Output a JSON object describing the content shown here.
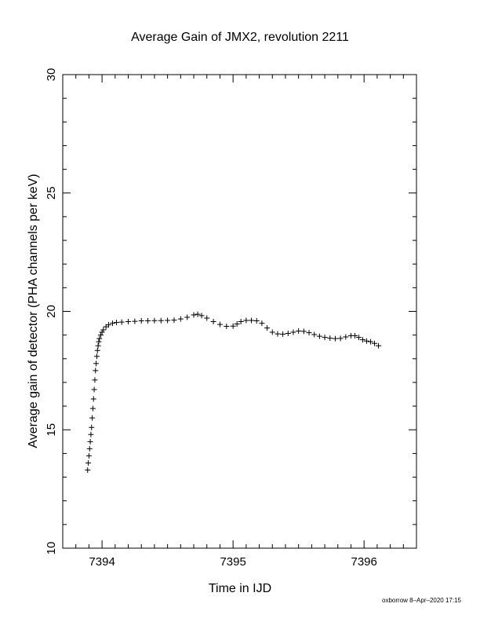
{
  "chart_data": {
    "type": "scatter",
    "title": "Average Gain of JMX2, revolution 2211",
    "xlabel": "Time in IJD",
    "ylabel": "Average gain of detector (PHA channels per keV)",
    "xlim": [
      7393.7,
      7396.4
    ],
    "ylim": [
      10,
      30
    ],
    "xticks": [
      7394,
      7395,
      7396
    ],
    "yticks": [
      10,
      15,
      20,
      25,
      30
    ],
    "marker": "+",
    "grid": false,
    "series": [
      {
        "points": [
          [
            7393.89,
            13.3
          ],
          [
            7393.895,
            13.6
          ],
          [
            7393.9,
            13.9
          ],
          [
            7393.905,
            14.2
          ],
          [
            7393.91,
            14.5
          ],
          [
            7393.915,
            14.8
          ],
          [
            7393.92,
            15.1
          ],
          [
            7393.925,
            15.5
          ],
          [
            7393.93,
            15.9
          ],
          [
            7393.935,
            16.3
          ],
          [
            7393.94,
            16.7
          ],
          [
            7393.945,
            17.1
          ],
          [
            7393.95,
            17.5
          ],
          [
            7393.955,
            17.8
          ],
          [
            7393.96,
            18.1
          ],
          [
            7393.965,
            18.35
          ],
          [
            7393.97,
            18.55
          ],
          [
            7393.975,
            18.72
          ],
          [
            7393.98,
            18.85
          ],
          [
            7393.99,
            19.0
          ],
          [
            7394.0,
            19.12
          ],
          [
            7394.01,
            19.22
          ],
          [
            7394.03,
            19.35
          ],
          [
            7394.05,
            19.43
          ],
          [
            7394.08,
            19.5
          ],
          [
            7394.11,
            19.53
          ],
          [
            7394.15,
            19.55
          ],
          [
            7394.2,
            19.57
          ],
          [
            7394.25,
            19.58
          ],
          [
            7394.3,
            19.6
          ],
          [
            7394.35,
            19.6
          ],
          [
            7394.4,
            19.61
          ],
          [
            7394.45,
            19.61
          ],
          [
            7394.5,
            19.62
          ],
          [
            7394.55,
            19.63
          ],
          [
            7394.6,
            19.68
          ],
          [
            7394.65,
            19.75
          ],
          [
            7394.7,
            19.85
          ],
          [
            7394.73,
            19.88
          ],
          [
            7394.76,
            19.82
          ],
          [
            7394.8,
            19.72
          ],
          [
            7394.85,
            19.57
          ],
          [
            7394.9,
            19.45
          ],
          [
            7394.95,
            19.37
          ],
          [
            7395.0,
            19.38
          ],
          [
            7395.03,
            19.47
          ],
          [
            7395.06,
            19.57
          ],
          [
            7395.1,
            19.62
          ],
          [
            7395.14,
            19.62
          ],
          [
            7395.18,
            19.6
          ],
          [
            7395.22,
            19.5
          ],
          [
            7395.26,
            19.3
          ],
          [
            7395.3,
            19.12
          ],
          [
            7395.34,
            19.05
          ],
          [
            7395.38,
            19.04
          ],
          [
            7395.42,
            19.07
          ],
          [
            7395.46,
            19.12
          ],
          [
            7395.5,
            19.17
          ],
          [
            7395.54,
            19.16
          ],
          [
            7395.58,
            19.1
          ],
          [
            7395.62,
            19.02
          ],
          [
            7395.66,
            18.95
          ],
          [
            7395.7,
            18.9
          ],
          [
            7395.74,
            18.87
          ],
          [
            7395.78,
            18.85
          ],
          [
            7395.82,
            18.86
          ],
          [
            7395.86,
            18.92
          ],
          [
            7395.9,
            18.97
          ],
          [
            7395.93,
            18.97
          ],
          [
            7395.96,
            18.9
          ],
          [
            7395.99,
            18.8
          ],
          [
            7396.02,
            18.75
          ],
          [
            7396.05,
            18.72
          ],
          [
            7396.08,
            18.65
          ],
          [
            7396.11,
            18.55
          ]
        ]
      }
    ]
  },
  "footer": {
    "stamp": "oxborrow  8–Apr–2020 17:15"
  }
}
